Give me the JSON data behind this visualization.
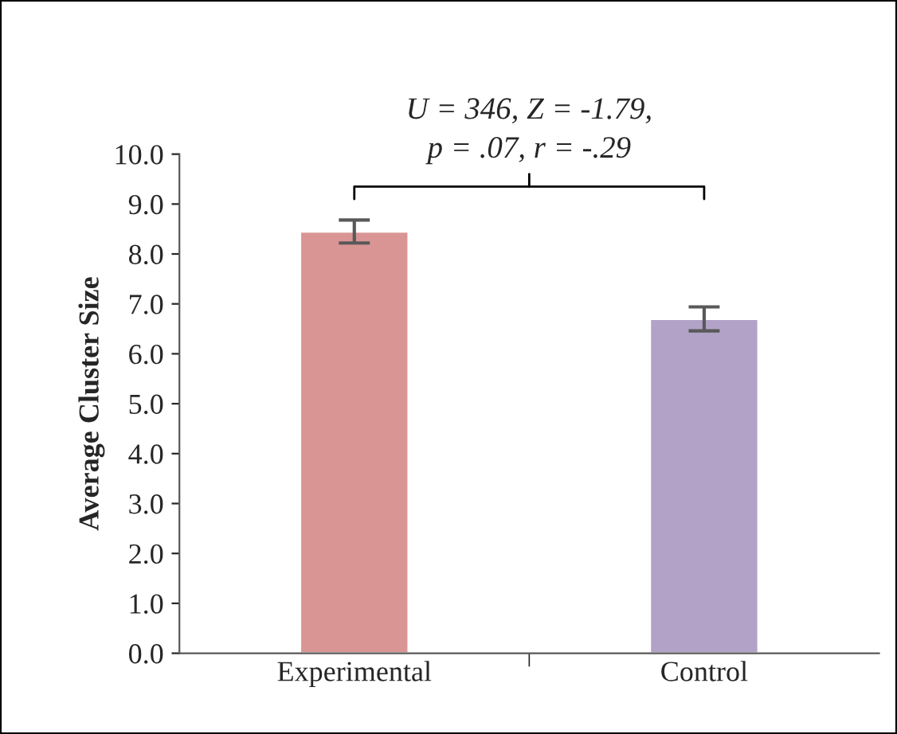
{
  "chart_data": {
    "type": "bar",
    "ylabel": "Average Cluster Size",
    "categories": [
      "Experimental",
      "Control"
    ],
    "values": [
      8.45,
      6.7
    ],
    "errors": [
      0.23,
      0.24
    ],
    "colors": [
      "#d99594",
      "#b2a2c7"
    ],
    "ylim": [
      0,
      10
    ],
    "yticks": [
      {
        "value": 0,
        "label": "0.0"
      },
      {
        "value": 1,
        "label": "1.0"
      },
      {
        "value": 2,
        "label": "2.0"
      },
      {
        "value": 3,
        "label": "3.0"
      },
      {
        "value": 4,
        "label": "4.0"
      },
      {
        "value": 5,
        "label": "5.0"
      },
      {
        "value": 6,
        "label": "6.0"
      },
      {
        "value": 7,
        "label": "7.0"
      },
      {
        "value": 8,
        "label": "8.0"
      },
      {
        "value": 9,
        "label": "9.0"
      },
      {
        "value": 10,
        "label": "10.0"
      }
    ],
    "annotations": [
      "U = 346, Z = -1.79,\np = .07, r = -.29"
    ],
    "grid": false
  }
}
